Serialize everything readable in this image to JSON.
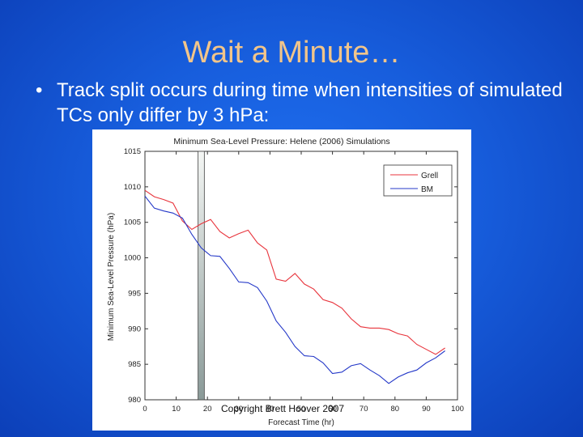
{
  "slide": {
    "title": "Wait a Minute…",
    "bullet_marker": "•",
    "bullet_text": "Track split occurs during time when intensities of simulated TCs only differ by 3 hPa:"
  },
  "colors": {
    "background": "#175ddc",
    "title": "#f2c58a",
    "grell": "#e8343c",
    "bm": "#2438c8",
    "band": "#8a9a98"
  },
  "chart_data": {
    "type": "line",
    "title": "Minimum Sea-Level Pressure: Helene (2006) Simulations",
    "xlabel": "Forecast Time (hr)",
    "ylabel": "Minimum Sea-Level Pressure (hPa)",
    "xlim": [
      0,
      100
    ],
    "ylim": [
      980,
      1015
    ],
    "xticks": [
      0,
      10,
      20,
      30,
      40,
      50,
      60,
      70,
      80,
      90,
      100
    ],
    "yticks": [
      980,
      985,
      990,
      995,
      1000,
      1005,
      1010,
      1015
    ],
    "legend_position": "top-right",
    "grid": false,
    "highlight_band_x": [
      17,
      19
    ],
    "annotation": "Copyright Brett Hoover 2007",
    "series": [
      {
        "name": "Grell",
        "color": "#e8343c",
        "x": [
          0,
          3,
          6,
          9,
          12,
          15,
          18,
          21,
          24,
          27,
          30,
          33,
          36,
          39,
          42,
          45,
          48,
          51,
          54,
          57,
          60,
          63,
          66,
          69,
          72,
          75,
          78,
          81,
          84,
          87,
          90,
          93,
          96
        ],
        "y": [
          1009.5,
          1008.6,
          1008.2,
          1007.7,
          1005.2,
          1004,
          1004.8,
          1005.4,
          1003.7,
          1002.8,
          1003.4,
          1003.9,
          1002.1,
          1001.1,
          997,
          996.7,
          997.8,
          996.3,
          995.6,
          994.1,
          993.7,
          992.9,
          991.4,
          990.3,
          990.1,
          990.1,
          989.9,
          989.3,
          989,
          987.8,
          987.1,
          986.4,
          987.3
        ]
      },
      {
        "name": "BM",
        "color": "#2438c8",
        "x": [
          0,
          3,
          6,
          9,
          12,
          15,
          18,
          21,
          24,
          27,
          30,
          33,
          36,
          39,
          42,
          45,
          48,
          51,
          54,
          57,
          60,
          63,
          66,
          69,
          72,
          75,
          78,
          81,
          84,
          87,
          90,
          93,
          96
        ],
        "y": [
          1008.7,
          1007,
          1006.6,
          1006.3,
          1005.6,
          1003.3,
          1001.4,
          1000.3,
          1000.2,
          998.5,
          996.6,
          996.5,
          995.8,
          993.9,
          991.1,
          989.5,
          987.5,
          986.2,
          986.1,
          985.2,
          983.7,
          983.9,
          984.8,
          985.1,
          984.2,
          983.4,
          982.3,
          983.2,
          983.8,
          984.2,
          985.2,
          985.9,
          986.9
        ]
      }
    ]
  }
}
